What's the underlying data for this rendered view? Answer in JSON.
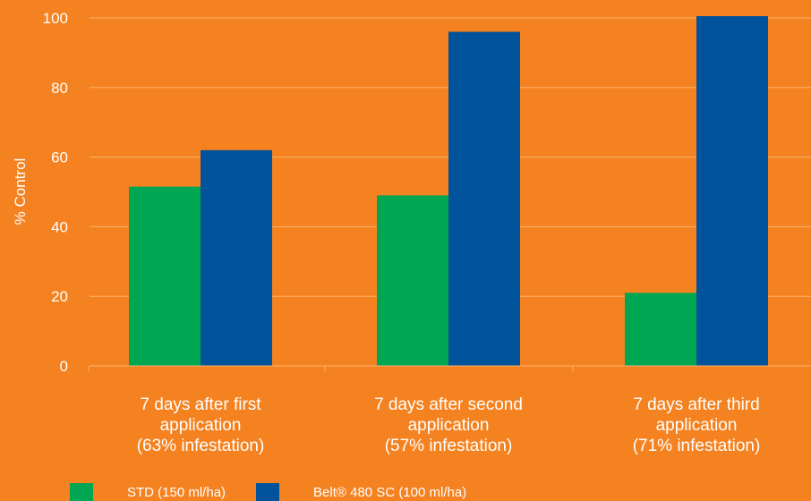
{
  "chart_data": {
    "type": "bar",
    "ylabel": "% Control",
    "ylim": [
      0,
      100
    ],
    "yticks": [
      0,
      20,
      40,
      60,
      80,
      100
    ],
    "grid": true,
    "legend_position": "bottom-left",
    "categories": [
      [
        "7 days after first",
        "application",
        "(63% infestation)"
      ],
      [
        "7 days after second",
        "application",
        "(57% infestation)"
      ],
      [
        "7 days after third",
        "application",
        "(71% infestation)"
      ]
    ],
    "series": [
      {
        "name": "STD  (150 ml/ha)",
        "color": "#00a651",
        "values": [
          51.5,
          49,
          21
        ]
      },
      {
        "name": "Belt® 480 SC (100 ml/ha)",
        "color": "#00529b",
        "values": [
          62,
          96,
          100.5
        ]
      }
    ]
  },
  "colors": {
    "background": "#f58220",
    "gridline": "#fbb36e",
    "text": "#ffffff"
  }
}
